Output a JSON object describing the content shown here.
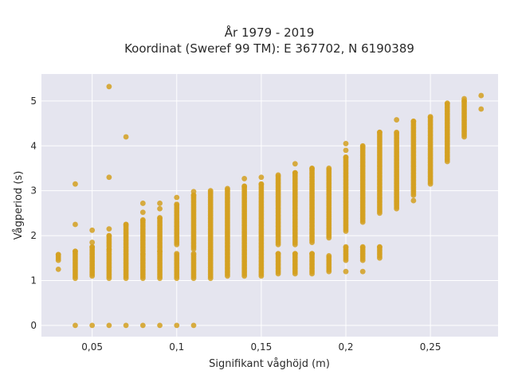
{
  "colors": {
    "plot_background": "#e5e5ef",
    "marker": "#d4a020",
    "grid": "#ffffff",
    "text": "#2a2a2a"
  },
  "chart_data": {
    "type": "scatter",
    "title": "År 1979 - 2019",
    "subtitle": "Koordinat (Sweref 99 TM): E 367702, N 6190389",
    "xlabel": "Signifikant våghöjd (m)",
    "ylabel": "Vågperiod (s)",
    "xlim": [
      0.02,
      0.29
    ],
    "ylim": [
      -0.25,
      5.6
    ],
    "x_ticks": [
      0.05,
      0.1,
      0.15,
      0.2,
      0.25
    ],
    "x_tick_labels": [
      "0,05",
      "0,1",
      "0,15",
      "0,2",
      "0,25"
    ],
    "y_ticks": [
      0,
      1,
      2,
      3,
      4,
      5
    ],
    "y_tick_labels": [
      "0",
      "1",
      "2",
      "3",
      "4",
      "5"
    ],
    "grid": true,
    "legend": "none",
    "series": [
      {
        "ranges": [
          {
            "x": 0.03,
            "from": 1.45,
            "to": 1.58
          },
          {
            "x": 0.04,
            "from": 1.05,
            "to": 1.65
          },
          {
            "x": 0.05,
            "from": 1.1,
            "to": 1.75
          },
          {
            "x": 0.06,
            "from": 1.05,
            "to": 1.7
          },
          {
            "x": 0.06,
            "from": 1.75,
            "to": 2.0
          },
          {
            "x": 0.07,
            "from": 1.05,
            "to": 2.25
          },
          {
            "x": 0.08,
            "from": 1.05,
            "to": 1.6
          },
          {
            "x": 0.08,
            "from": 1.65,
            "to": 2.35
          },
          {
            "x": 0.09,
            "from": 1.05,
            "to": 1.65
          },
          {
            "x": 0.09,
            "from": 1.7,
            "to": 2.4
          },
          {
            "x": 0.1,
            "from": 1.05,
            "to": 1.6
          },
          {
            "x": 0.1,
            "from": 1.8,
            "to": 2.7
          },
          {
            "x": 0.11,
            "from": 1.05,
            "to": 1.6
          },
          {
            "x": 0.11,
            "from": 1.7,
            "to": 2.9
          },
          {
            "x": 0.12,
            "from": 1.05,
            "to": 3.0
          },
          {
            "x": 0.13,
            "from": 1.1,
            "to": 3.05
          },
          {
            "x": 0.14,
            "from": 1.1,
            "to": 3.1
          },
          {
            "x": 0.15,
            "from": 1.1,
            "to": 3.15
          },
          {
            "x": 0.16,
            "from": 1.15,
            "to": 1.6
          },
          {
            "x": 0.16,
            "from": 1.8,
            "to": 3.35
          },
          {
            "x": 0.17,
            "from": 1.15,
            "to": 1.6
          },
          {
            "x": 0.17,
            "from": 1.8,
            "to": 3.4
          },
          {
            "x": 0.18,
            "from": 1.15,
            "to": 1.6
          },
          {
            "x": 0.18,
            "from": 1.85,
            "to": 3.5
          },
          {
            "x": 0.19,
            "from": 1.2,
            "to": 1.55
          },
          {
            "x": 0.19,
            "from": 1.95,
            "to": 3.5
          },
          {
            "x": 0.2,
            "from": 1.45,
            "to": 1.75
          },
          {
            "x": 0.2,
            "from": 2.1,
            "to": 3.75
          },
          {
            "x": 0.21,
            "from": 1.45,
            "to": 1.75
          },
          {
            "x": 0.21,
            "from": 2.3,
            "to": 4.0
          },
          {
            "x": 0.22,
            "from": 1.5,
            "to": 1.75
          },
          {
            "x": 0.22,
            "from": 2.5,
            "to": 4.3
          },
          {
            "x": 0.23,
            "from": 2.6,
            "to": 4.3
          },
          {
            "x": 0.24,
            "from": 2.9,
            "to": 4.55
          },
          {
            "x": 0.25,
            "from": 3.15,
            "to": 4.65
          },
          {
            "x": 0.26,
            "from": 3.65,
            "to": 4.95
          },
          {
            "x": 0.27,
            "from": 4.2,
            "to": 5.0
          }
        ],
        "points": [
          {
            "x": 0.03,
            "y": 1.25
          },
          {
            "x": 0.04,
            "y": 2.25
          },
          {
            "x": 0.04,
            "y": 3.15
          },
          {
            "x": 0.05,
            "y": 1.85
          },
          {
            "x": 0.05,
            "y": 2.12
          },
          {
            "x": 0.06,
            "y": 2.15
          },
          {
            "x": 0.06,
            "y": 3.3
          },
          {
            "x": 0.06,
            "y": 5.32
          },
          {
            "x": 0.07,
            "y": 4.2
          },
          {
            "x": 0.08,
            "y": 2.52
          },
          {
            "x": 0.08,
            "y": 2.72
          },
          {
            "x": 0.09,
            "y": 2.6
          },
          {
            "x": 0.09,
            "y": 2.72
          },
          {
            "x": 0.1,
            "y": 2.85
          },
          {
            "x": 0.11,
            "y": 2.98
          },
          {
            "x": 0.14,
            "y": 3.27
          },
          {
            "x": 0.15,
            "y": 3.3
          },
          {
            "x": 0.17,
            "y": 3.6
          },
          {
            "x": 0.2,
            "y": 3.9
          },
          {
            "x": 0.2,
            "y": 4.05
          },
          {
            "x": 0.2,
            "y": 1.2
          },
          {
            "x": 0.21,
            "y": 1.2
          },
          {
            "x": 0.23,
            "y": 4.58
          },
          {
            "x": 0.24,
            "y": 2.78
          },
          {
            "x": 0.27,
            "y": 5.05
          },
          {
            "x": 0.28,
            "y": 5.12
          },
          {
            "x": 0.28,
            "y": 4.82
          },
          {
            "x": 0.04,
            "y": 0
          },
          {
            "x": 0.05,
            "y": 0
          },
          {
            "x": 0.06,
            "y": 0
          },
          {
            "x": 0.07,
            "y": 0
          },
          {
            "x": 0.08,
            "y": 0
          },
          {
            "x": 0.09,
            "y": 0
          },
          {
            "x": 0.1,
            "y": 0
          },
          {
            "x": 0.11,
            "y": 0
          }
        ]
      }
    ]
  }
}
